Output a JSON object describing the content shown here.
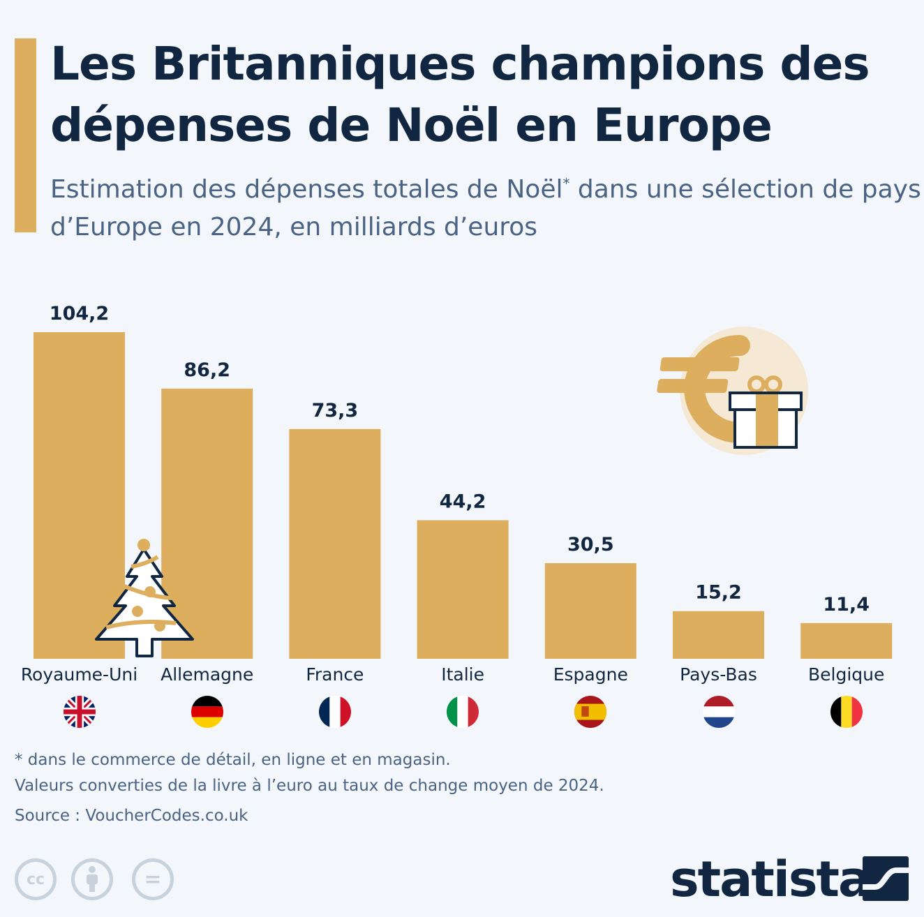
{
  "header": {
    "title": "Les Britanniques champions des dépenses de Noël en Europe",
    "subtitle_part1": "Estimation des dépenses totales de Noël",
    "subtitle_sup": "*",
    "subtitle_part2": " dans une sélection de pays d’Europe en 2024, en milliards d’euros"
  },
  "colors": {
    "accent": "#dcae5e",
    "navy": "#112640",
    "muted": "#4a6384",
    "background": "#f3f6fa"
  },
  "chart_data": {
    "type": "bar",
    "title": "Les Britanniques champions des dépenses de Noël en Europe",
    "subtitle": "Estimation des dépenses totales de Noël* dans une sélection de pays d’Europe en 2024, en milliards d’euros",
    "categories": [
      "Royaume-Uni",
      "Allemagne",
      "France",
      "Italie",
      "Espagne",
      "Pays-Bas",
      "Belgique"
    ],
    "values": [
      104.2,
      86.2,
      73.3,
      44.2,
      30.5,
      15.2,
      11.4
    ],
    "value_labels": [
      "104,2",
      "86,2",
      "73,3",
      "44,2",
      "30,5",
      "15,2",
      "11,4"
    ],
    "xlabel": "",
    "ylabel": "milliards d’euros",
    "ylim": [
      0,
      104.2
    ],
    "grid": false,
    "legend": "none",
    "bar_color": "#dcae5e"
  },
  "flags": [
    "uk-flag",
    "germany-flag",
    "france-flag",
    "italy-flag",
    "spain-flag",
    "netherlands-flag",
    "belgium-flag"
  ],
  "footer": {
    "note1": "* dans le commerce de détail, en ligne et en magasin.",
    "note2": "Valeurs converties de la livre à l’euro au taux de change moyen de 2024.",
    "source": "Source : VoucherCodes.co.uk",
    "cc_label": "cc",
    "equals_label": "=",
    "logo": "statista"
  }
}
